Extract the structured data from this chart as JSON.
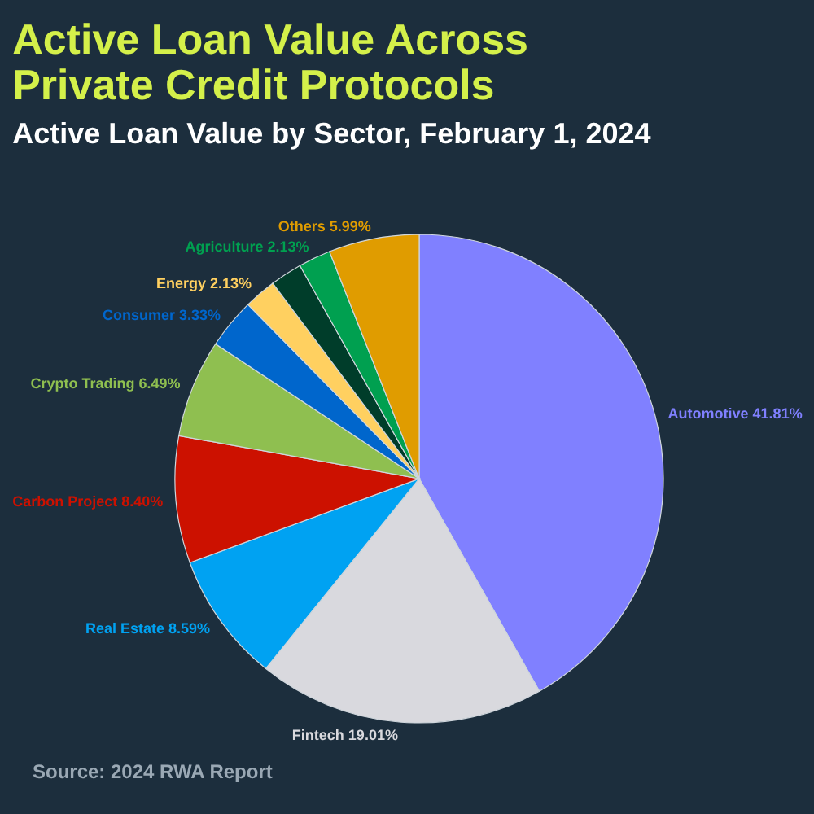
{
  "chart_data": {
    "type": "pie",
    "title": [
      "Active Loan Value Across",
      "Private Credit Protocols"
    ],
    "subtitle": "Active Loan Value by Sector, February 1, 2024",
    "categories": [
      "Automotive",
      "Fintech",
      "Real Estate",
      "Carbon Project",
      "Crypto Trading",
      "Consumer",
      "Energy",
      null,
      "Agriculture",
      "Others"
    ],
    "values": [
      41.81,
      19.01,
      8.59,
      8.4,
      6.49,
      3.33,
      2.13,
      2.12,
      2.13,
      5.99
    ],
    "value_labels": [
      "41.81%",
      "19.01%",
      "8.59%",
      "8.40%",
      "6.49%",
      "3.33%",
      "2.13%",
      null,
      "2.13%",
      "5.99%"
    ],
    "colors": [
      "#8080ff",
      "#d9d9de",
      "#00a2f2",
      "#cc1100",
      "#8fbf50",
      "#0066cc",
      "#ffd060",
      "#003d2a",
      "#00a050",
      "#e09c00"
    ],
    "annotations": [
      "Source: 2024 RWA Report"
    ]
  }
}
